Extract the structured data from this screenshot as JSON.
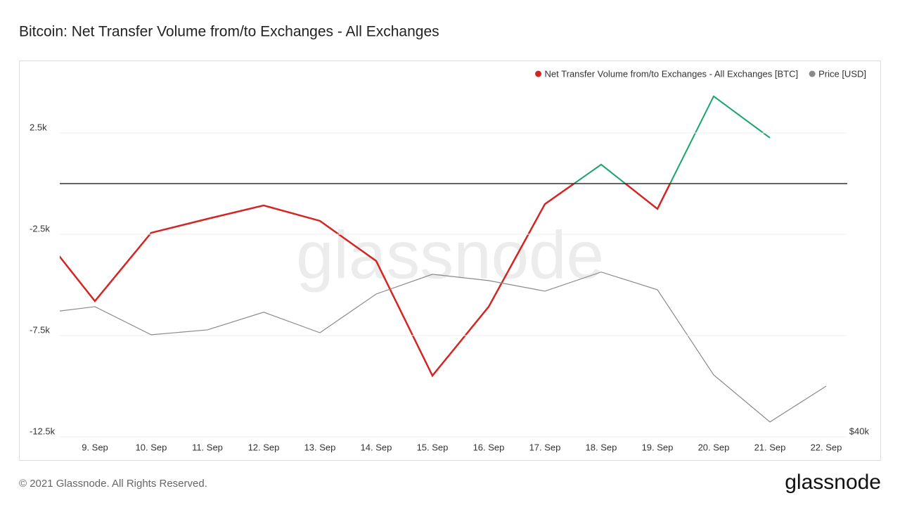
{
  "chart_data": {
    "type": "line",
    "title": "Bitcoin: Net Transfer Volume from/to Exchanges - All Exchanges",
    "watermark": "glassnode",
    "footer": "© 2021 Glassnode. All Rights Reserved.",
    "logo": "glassnode",
    "categories": [
      null,
      "9. Sep",
      "10. Sep",
      "11. Sep",
      "12. Sep",
      "13. Sep",
      "14. Sep",
      "15. Sep",
      "16. Sep",
      "17. Sep",
      "18. Sep",
      "19. Sep",
      "20. Sep",
      "21. Sep",
      "22. Sep"
    ],
    "series": [
      {
        "name": "Net Transfer Volume from/to Exchanges - All Exchanges [BTC]",
        "color": "#d42424",
        "positive_color": "#1aa36b",
        "values": [
          -2300,
          -5800,
          -2430,
          -1740,
          -1080,
          -1840,
          -3820,
          -9480,
          -6080,
          -1010,
          940,
          -1250,
          4310,
          2260,
          null
        ]
      },
      {
        "name": "Price [USD]",
        "color": "#8a8a8a",
        "axis": "y2",
        "values": [
          46050,
          46390,
          45010,
          45250,
          46120,
          45110,
          47010,
          47980,
          47670,
          47150,
          48090,
          47220,
          43040,
          40730,
          42490
        ]
      }
    ],
    "ylim": [
      -12500,
      5600
    ],
    "yticks": [
      {
        "value": 2500,
        "label": "2.5k"
      },
      {
        "value": -2500,
        "label": "-2.5k"
      },
      {
        "value": -7500,
        "label": "-7.5k"
      },
      {
        "value": -12500,
        "label": "-12.5k"
      }
    ],
    "y2lim": [
      40000,
      58000
    ],
    "y2ticks": [
      {
        "value": 40000,
        "label": "$40k"
      }
    ],
    "grid": true,
    "legend": "top-right"
  }
}
